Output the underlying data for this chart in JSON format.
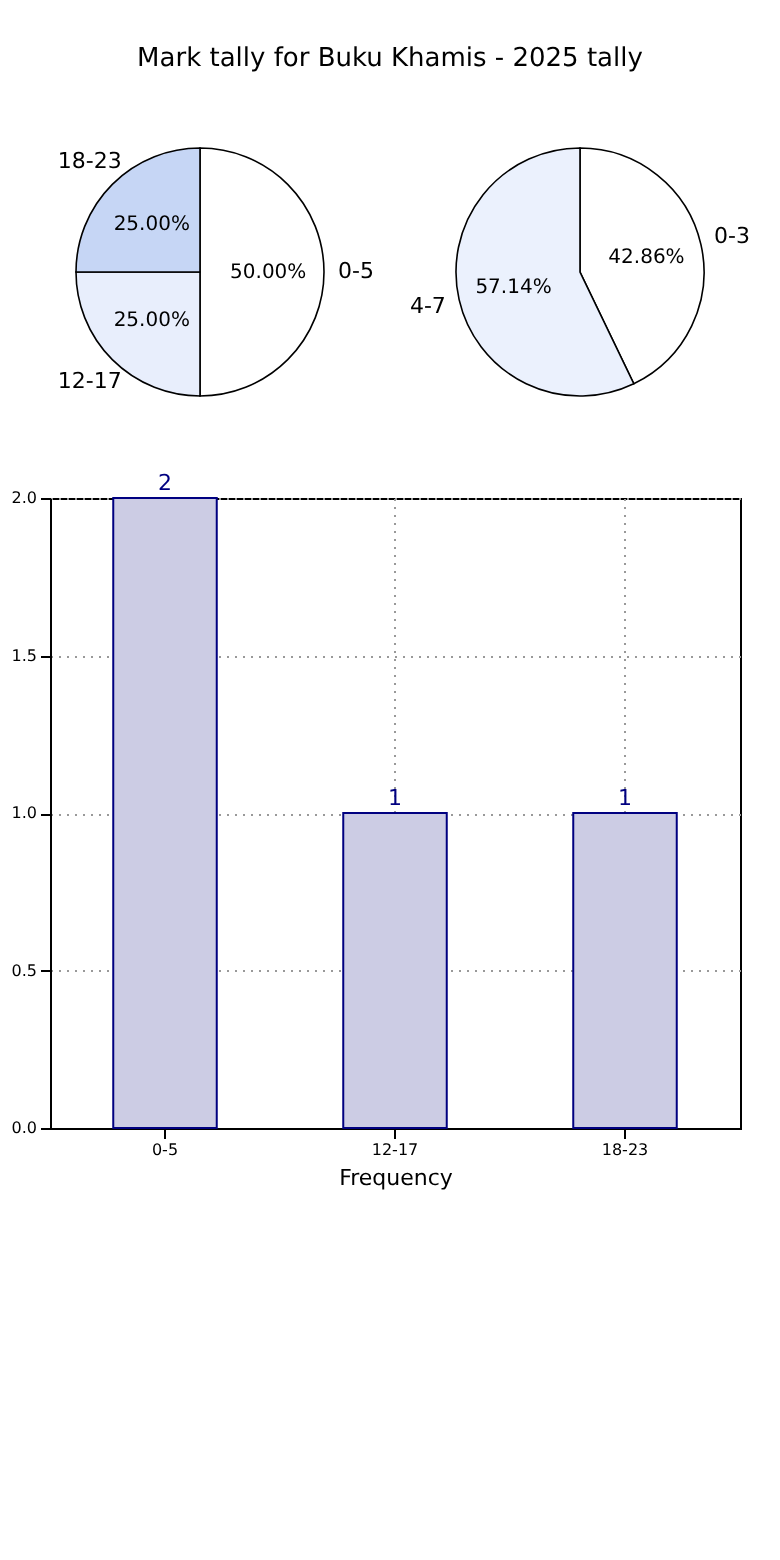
{
  "chart_data": [
    {
      "type": "pie",
      "title": "Mark tally for Buku Khamis - 2025 tally",
      "categories": [
        "0-5",
        "12-17",
        "18-23"
      ],
      "values": [
        50,
        25,
        25
      ],
      "colors": [
        "#ffffff",
        "#e8eefc",
        "#c6d6f5"
      ],
      "value_labels": [
        "50.00%",
        "25.00%",
        "25.00%"
      ]
    },
    {
      "type": "pie",
      "categories": [
        "0-3",
        "4-7"
      ],
      "values": [
        42.86,
        57.14
      ],
      "colors": [
        "#ffffff",
        "#ebf1fd"
      ],
      "value_labels": [
        "42.86%",
        "57.14%"
      ]
    },
    {
      "type": "bar",
      "xlabel": "Frequency",
      "categories": [
        "0-5",
        "12-17",
        "18-23"
      ],
      "values": [
        2,
        1,
        1
      ],
      "color": "#cccce4",
      "ylim": [
        0,
        2
      ],
      "yticks": [
        {
          "value": 0,
          "label": "0.0"
        },
        {
          "value": 0.5,
          "label": "0.5"
        },
        {
          "value": 1,
          "label": "1.0"
        },
        {
          "value": 1.5,
          "label": "1.5"
        },
        {
          "value": 2,
          "label": "2.0"
        }
      ],
      "grid": true,
      "data_labels": true
    }
  ]
}
